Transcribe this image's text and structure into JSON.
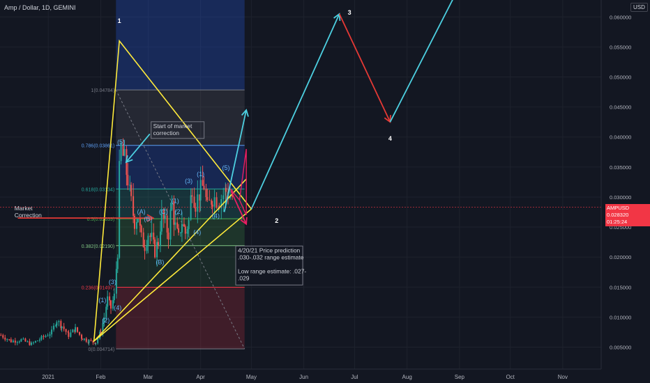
{
  "header": {
    "title": "Amp / Dollar, 1D, GEMINI",
    "currency": "USD"
  },
  "price_tag": {
    "symbol": "AMPUSD",
    "price": "0.028320",
    "countdown": "01:25:24"
  },
  "colors": {
    "background": "#131722",
    "grid": "#1e222d",
    "axis_text": "#b2b5be",
    "yellow": "#ffeb3b",
    "cyan": "#4dd0e1",
    "red": "#e53935",
    "magenta": "#e91e63",
    "candle_up": "#26a69a",
    "candle_down": "#ef5350"
  },
  "chart_data": {
    "type": "candlestick",
    "title": "Amp / Dollar, 1D, GEMINI",
    "symbol": "AMPUSD",
    "last_price": 0.02832,
    "yaxis": {
      "position": "right",
      "ylim": [
        0.0015,
        0.063
      ],
      "ticks": [
        "0.060000",
        "0.055000",
        "0.050000",
        "0.045000",
        "0.040000",
        "0.035000",
        "0.030000",
        "0.025000",
        "0.020000",
        "0.015000",
        "0.010000",
        "0.005000"
      ]
    },
    "xaxis": {
      "ticks": [
        {
          "label": "2021",
          "date": "2021-01-01"
        },
        {
          "label": "Feb",
          "date": "2021-02-01"
        },
        {
          "label": "Mar",
          "date": "2021-03-01"
        },
        {
          "label": "Apr",
          "date": "2021-04-01"
        },
        {
          "label": "May",
          "date": "2021-05-01"
        },
        {
          "label": "Jun",
          "date": "2021-06-01"
        },
        {
          "label": "Jul",
          "date": "2021-07-01"
        },
        {
          "label": "Aug",
          "date": "2021-08-01"
        },
        {
          "label": "Sep",
          "date": "2021-09-01"
        },
        {
          "label": "Oct",
          "date": "2021-10-01"
        },
        {
          "label": "Nov",
          "date": "2021-11-01"
        }
      ]
    },
    "price_path": [
      [
        "2020-12-04",
        0.007
      ],
      [
        "2020-12-10",
        0.006
      ],
      [
        "2020-12-16",
        0.0062
      ],
      [
        "2020-12-22",
        0.0055
      ],
      [
        "2020-12-28",
        0.0065
      ],
      [
        "2021-01-03",
        0.0075
      ],
      [
        "2021-01-06",
        0.0095
      ],
      [
        "2021-01-09",
        0.0085
      ],
      [
        "2021-01-13",
        0.007
      ],
      [
        "2021-01-17",
        0.008
      ],
      [
        "2021-01-21",
        0.0065
      ],
      [
        "2021-01-25",
        0.006
      ],
      [
        "2021-01-29",
        0.0058
      ],
      [
        "2021-02-01",
        0.0075
      ],
      [
        "2021-02-03",
        0.01
      ],
      [
        "2021-02-05",
        0.013
      ],
      [
        "2021-02-07",
        0.0115
      ],
      [
        "2021-02-09",
        0.0135
      ],
      [
        "2021-02-11",
        0.021
      ],
      [
        "2021-02-12",
        0.034
      ],
      [
        "2021-02-13",
        0.038
      ],
      [
        "2021-02-15",
        0.036
      ],
      [
        "2021-02-17",
        0.033
      ],
      [
        "2021-02-19",
        0.029
      ],
      [
        "2021-02-21",
        0.026
      ],
      [
        "2021-02-23",
        0.027
      ],
      [
        "2021-02-25",
        0.023
      ],
      [
        "2021-02-27",
        0.022
      ],
      [
        "2021-03-01",
        0.024
      ],
      [
        "2021-03-03",
        0.023
      ],
      [
        "2021-03-05",
        0.021
      ],
      [
        "2021-03-07",
        0.0225
      ],
      [
        "2021-03-09",
        0.027
      ],
      [
        "2021-03-11",
        0.0255
      ],
      [
        "2021-03-13",
        0.024
      ],
      [
        "2021-03-15",
        0.029
      ],
      [
        "2021-03-17",
        0.025
      ],
      [
        "2021-03-19",
        0.023
      ],
      [
        "2021-03-21",
        0.026
      ],
      [
        "2021-03-23",
        0.024
      ],
      [
        "2021-03-25",
        0.026
      ],
      [
        "2021-03-27",
        0.032
      ],
      [
        "2021-03-29",
        0.029
      ],
      [
        "2021-04-01",
        0.031
      ],
      [
        "2021-04-03",
        0.032
      ],
      [
        "2021-04-05",
        0.028
      ],
      [
        "2021-04-08",
        0.03
      ],
      [
        "2021-04-12",
        0.0295
      ],
      [
        "2021-04-16",
        0.031
      ],
      [
        "2021-04-20",
        0.03
      ]
    ],
    "fibonacci": {
      "start_date": "2021-02-10",
      "end_date": "2021-04-27",
      "levels": [
        {
          "ratio": "1",
          "label": "1(0.04784)",
          "price": 0.04784,
          "color": "#787b86",
          "fill": "rgba(120,123,134,0.18)"
        },
        {
          "ratio": "0.786",
          "label": "0.786(0.03861)",
          "price": 0.03861,
          "color": "#5d9ff5",
          "fill": "rgba(41,98,255,0.22)"
        },
        {
          "ratio": "0.618",
          "label": "0.618(0.03134)",
          "price": 0.03134,
          "color": "#26a69a",
          "fill": "rgba(38,166,154,0.20)"
        },
        {
          "ratio": "0.5",
          "label": "0.5(0.02639)",
          "price": 0.02639,
          "color": "#4caf50",
          "fill": "rgba(76,175,80,0.20)"
        },
        {
          "ratio": "0.382",
          "label": "0.382(0.02190)",
          "price": 0.0219,
          "color": "#81c784",
          "fill": "rgba(76,175,80,0.12)"
        },
        {
          "ratio": "0.236",
          "label": "0.236(0.01497)",
          "price": 0.01497,
          "color": "#f23645",
          "fill": "rgba(242,54,69,0.20)"
        },
        {
          "ratio": "0",
          "label": "0(0.004714)",
          "price": 0.004714,
          "color": "#787b86",
          "fill": "rgba(242,54,69,0.20)"
        }
      ],
      "top_price": 0.063
    },
    "triangle": [
      [
        "2021-01-28",
        0.006
      ],
      [
        "2021-02-12",
        0.056
      ],
      [
        "2021-05-01",
        0.028
      ]
    ],
    "support_line": [
      [
        "2021-01-28",
        0.006
      ],
      [
        "2021-04-28",
        0.033
      ]
    ],
    "forecast": {
      "up1": [
        [
          "2021-05-01",
          0.028
        ],
        [
          "2021-06-22",
          0.0605
        ]
      ],
      "down": [
        [
          "2021-06-22",
          0.0605
        ],
        [
          "2021-07-22",
          0.0425
        ]
      ],
      "up2": [
        [
          "2021-07-22",
          0.0425
        ],
        [
          "2021-08-30",
          0.064
        ]
      ]
    },
    "arrows": [
      {
        "name": "market-correction-arrow",
        "color": "#e53935",
        "from": [
          "2020-12-14",
          0.0265
        ],
        "to": [
          "2021-03-04",
          0.0265
        ]
      },
      {
        "name": "correction-start-arrow",
        "color": "#4dd0e1",
        "from": [
          "2021-03-02",
          0.0405
        ],
        "to": [
          "2021-02-16",
          0.0358
        ]
      },
      {
        "name": "breakout-arrow",
        "color": "#4dd0e1",
        "from": [
          "2021-04-15",
          0.0275
        ],
        "to": [
          "2021-04-28",
          0.0445
        ]
      },
      {
        "name": "pullback-arrow",
        "color": "#e91e63",
        "from": [
          "2021-04-19",
          0.031
        ],
        "to": [
          "2021-04-28",
          0.0255
        ]
      }
    ],
    "range_box": {
      "color": "#e91e63",
      "points": [
        [
          "2021-04-18",
          0.0315
        ],
        [
          "2021-04-24",
          0.0295
        ],
        [
          "2021-04-28",
          0.038
        ],
        [
          "2021-04-28",
          0.027
        ],
        [
          "2021-04-24",
          0.0295
        ]
      ]
    },
    "numbers": [
      {
        "text": "1",
        "date": "2021-02-12",
        "price": 0.059
      },
      {
        "text": "2",
        "date": "2021-05-16",
        "price": 0.0257
      },
      {
        "text": "3",
        "date": "2021-06-28",
        "price": 0.0604
      },
      {
        "text": "4",
        "date": "2021-07-22",
        "price": 0.0394
      }
    ],
    "wave_labels": [
      {
        "text": "(5)",
        "date": "2021-02-13",
        "price": 0.0388
      },
      {
        "text": "(3)",
        "date": "2021-02-08",
        "price": 0.0155
      },
      {
        "text": "(1)",
        "date": "2021-02-02",
        "price": 0.0125
      },
      {
        "text": "(4)",
        "date": "2021-02-11",
        "price": 0.0112
      },
      {
        "text": "(2)",
        "date": "2021-02-04",
        "price": 0.0091
      },
      {
        "text": "(A)",
        "date": "2021-02-25",
        "price": 0.0272
      },
      {
        "text": "(B)",
        "date": "2021-03-01",
        "price": 0.026
      },
      {
        "text": "(C)",
        "date": "2021-03-10",
        "price": 0.0272
      },
      {
        "text": "(1)",
        "date": "2021-03-17",
        "price": 0.029
      },
      {
        "text": "(2)",
        "date": "2021-03-19",
        "price": 0.0272
      },
      {
        "text": "(3)",
        "date": "2021-03-25",
        "price": 0.0323
      },
      {
        "text": "(1)",
        "date": "2021-04-01",
        "price": 0.0335
      },
      {
        "text": "(B)",
        "date": "2021-03-08",
        "price": 0.0188
      },
      {
        "text": "(4)",
        "date": "2021-03-30",
        "price": 0.0238
      },
      {
        "text": "(4)",
        "date": "2021-04-10",
        "price": 0.0265
      },
      {
        "text": "(5)",
        "date": "2021-04-16",
        "price": 0.0345
      }
    ],
    "annotations": {
      "market_correction_label": {
        "lines": [
          "Market",
          "Correction"
        ],
        "date": "2020-12-12",
        "price": 0.0278
      },
      "correction_start_box": {
        "lines": [
          "Start of market",
          "correction"
        ],
        "date": "2021-03-04",
        "price": 0.0415
      },
      "prediction_box": {
        "lines": [
          "4/20/21 Price prediction",
          ".030-.032 range estimate",
          "",
          "Low range estimate: .027-",
          ".029"
        ],
        "date": "2021-04-23",
        "price": 0.0208
      }
    }
  }
}
